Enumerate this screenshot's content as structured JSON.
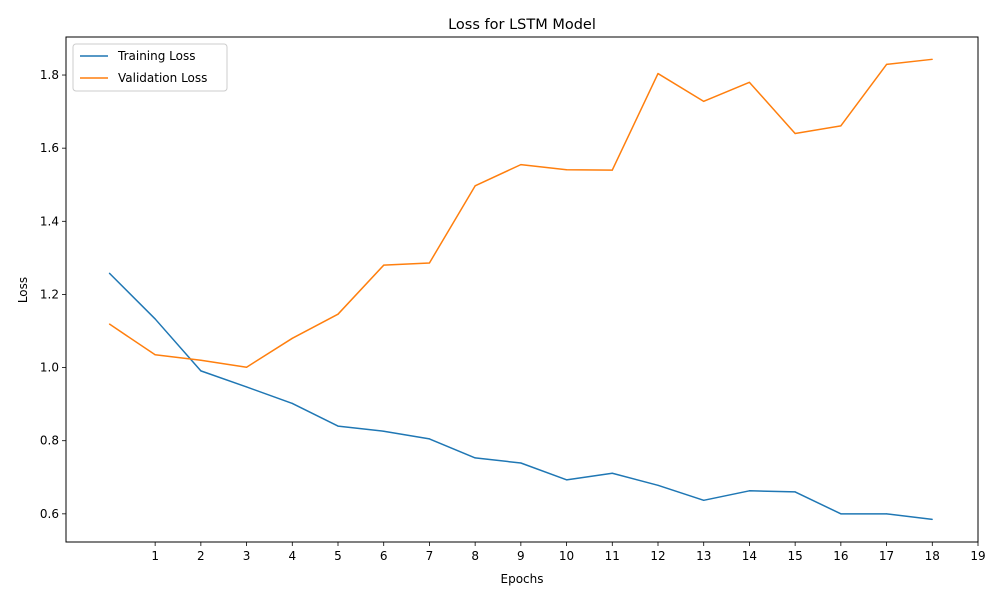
{
  "chart_data": {
    "type": "line",
    "title": "Loss for LSTM Model",
    "xlabel": "Epochs",
    "ylabel": "Loss",
    "x": [
      0,
      1,
      2,
      3,
      4,
      5,
      6,
      7,
      8,
      9,
      10,
      11,
      12,
      13,
      14,
      15,
      16,
      17,
      18
    ],
    "xticks": [
      1,
      2,
      3,
      4,
      5,
      6,
      7,
      8,
      9,
      10,
      11,
      12,
      13,
      14,
      15,
      16,
      17,
      18,
      19
    ],
    "yticks": [
      0.6,
      0.8,
      1.0,
      1.2,
      1.4,
      1.6,
      1.8
    ],
    "ytick_labels": [
      "0.6",
      "0.8",
      "1.0",
      "1.2",
      "1.4",
      "1.6",
      "1.8"
    ],
    "xlim": [
      -0.95,
      19
    ],
    "ylim": [
      0.523,
      1.904
    ],
    "grid": false,
    "legend_position": "upper-left",
    "series": [
      {
        "name": "Training Loss",
        "color": "#1f77b4",
        "values": [
          1.258,
          1.133,
          0.991,
          0.947,
          0.902,
          0.84,
          0.826,
          0.805,
          0.753,
          0.739,
          0.693,
          0.711,
          0.678,
          0.637,
          0.663,
          0.66,
          0.6,
          0.6,
          0.585
        ]
      },
      {
        "name": "Validation Loss",
        "color": "#ff7f0e",
        "values": [
          1.119,
          1.035,
          1.02,
          1.001,
          1.08,
          1.146,
          1.28,
          1.286,
          1.497,
          1.555,
          1.541,
          1.54,
          1.804,
          1.728,
          1.78,
          1.64,
          1.661,
          1.829,
          1.843
        ]
      }
    ]
  }
}
